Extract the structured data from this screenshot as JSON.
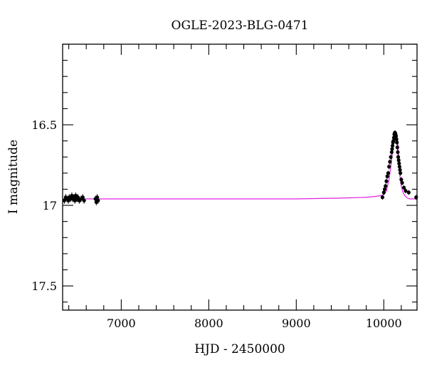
{
  "chart_data": {
    "type": "line",
    "title": "OGLE-2023-BLG-0471",
    "xlabel": "HJD - 2450000",
    "ylabel": "I magnitude",
    "xlim": [
      6330,
      10380
    ],
    "ylim": [
      17.65,
      16.0
    ],
    "y_inverted": true,
    "x_ticks": [
      7000,
      8000,
      9000,
      10000
    ],
    "x_tick_labels": [
      "7000",
      "8000",
      "9000",
      "10000"
    ],
    "x_minor_step": 200,
    "y_ticks": [
      16.5,
      17,
      17.5
    ],
    "y_tick_labels": [
      "16.5",
      "17",
      "17.5"
    ],
    "y_minor_step": 0.1,
    "grid": false,
    "colors": {
      "model": "#e020e0",
      "data": "#000000"
    },
    "series": [
      {
        "kind": "model",
        "x": [
          6330,
          9000,
          9500,
          9800,
          9900,
          9960,
          10000,
          10030,
          10060,
          10080,
          10100,
          10115,
          10130,
          10140,
          10150,
          10158,
          10166,
          10175,
          10185,
          10200,
          10220,
          10240,
          10270,
          10300,
          10340,
          10380
        ],
        "y": [
          16.96,
          16.96,
          16.955,
          16.95,
          16.945,
          16.94,
          16.935,
          16.91,
          16.84,
          16.76,
          16.67,
          16.6,
          16.56,
          16.55,
          16.56,
          16.6,
          16.67,
          16.75,
          16.82,
          16.88,
          16.92,
          16.94,
          16.955,
          16.96,
          16.96,
          16.96
        ]
      },
      {
        "kind": "observations",
        "x": [
          6350,
          6365,
          6380,
          6395,
          6405,
          6420,
          6435,
          6445,
          6460,
          6470,
          6480,
          6495,
          6505,
          6520,
          6540,
          6560,
          6575,
          6705,
          6715,
          6725,
          6735,
          9985,
          10000,
          10010,
          10020,
          10030,
          10040,
          10050,
          10060,
          10070,
          10080,
          10090,
          10095,
          10100,
          10105,
          10110,
          10115,
          10120,
          10125,
          10130,
          10135,
          10140,
          10145,
          10150,
          10155,
          10160,
          10165,
          10170,
          10175,
          10180,
          10185,
          10190,
          10200,
          10210,
          10230,
          10250,
          10285,
          10370
        ],
        "y": [
          16.97,
          16.95,
          16.96,
          16.97,
          16.95,
          16.96,
          16.94,
          16.96,
          16.95,
          16.97,
          16.94,
          16.96,
          16.95,
          16.97,
          16.96,
          16.95,
          16.97,
          16.96,
          16.98,
          16.95,
          16.97,
          16.95,
          16.92,
          16.9,
          16.88,
          16.85,
          16.82,
          16.8,
          16.76,
          16.73,
          16.7,
          16.67,
          16.65,
          16.63,
          16.61,
          16.6,
          16.58,
          16.56,
          16.55,
          16.55,
          16.56,
          16.57,
          16.59,
          16.61,
          16.64,
          16.67,
          16.7,
          16.72,
          16.74,
          16.76,
          16.78,
          16.8,
          16.84,
          16.86,
          16.89,
          16.91,
          16.92,
          16.95
        ],
        "err": [
          0.02,
          0.02,
          0.02,
          0.02,
          0.02,
          0.02,
          0.02,
          0.02,
          0.02,
          0.02,
          0.02,
          0.02,
          0.02,
          0.02,
          0.02,
          0.02,
          0.02,
          0.02,
          0.02,
          0.02,
          0.02,
          0.015,
          0.015,
          0.015,
          0.015,
          0.015,
          0.015,
          0.015,
          0.015,
          0.015,
          0.015,
          0.015,
          0.015,
          0.015,
          0.015,
          0.015,
          0.015,
          0.015,
          0.015,
          0.015,
          0.015,
          0.015,
          0.015,
          0.015,
          0.015,
          0.015,
          0.015,
          0.015,
          0.015,
          0.015,
          0.015,
          0.015,
          0.015,
          0.015,
          0.015,
          0.015,
          0.015,
          0.015
        ]
      }
    ]
  }
}
